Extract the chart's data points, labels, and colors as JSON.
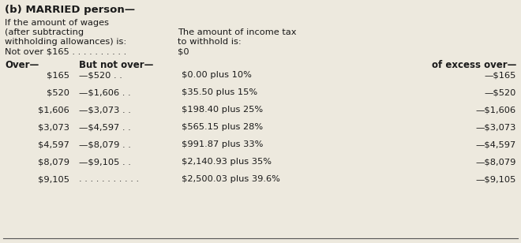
{
  "bg_color": "#ede9de",
  "title": "(b) MARRIED person—",
  "header_left1": "If the amount of wages",
  "header_left2": "(after subtracting",
  "header_left3": "withholding allowances) is:",
  "header_right1": "The amount of income tax",
  "header_right2": "to withhold is:",
  "not_over_line1": "Not over $165 . . . . . . . . . .",
  "not_over_line2": "$0",
  "col_headers": [
    "Over—",
    "But not over—",
    "of excess over—"
  ],
  "rows": [
    [
      "$165",
      "—$520 . .",
      "$0.00 plus 10%",
      "—$165"
    ],
    [
      "$520",
      "—$1,606 . .",
      "$35.50 plus 15%",
      "—$520"
    ],
    [
      "$1,606",
      "—$3,073 . .",
      "$198.40 plus 25%",
      "—$1,606"
    ],
    [
      "$3,073",
      "—$4,597 . .",
      "$565.15 plus 28%",
      "—$3,073"
    ],
    [
      "$4,597",
      "—$8,079 . .",
      "$991.87 plus 33%",
      "—$4,597"
    ],
    [
      "$8,079",
      "—$9,105 . .",
      "$2,140.93 plus 35%",
      "—$8,079"
    ],
    [
      "$9,105",
      ". . . . . . . . . . .",
      "$2,500.03 plus 39.6%",
      "—$9,105"
    ]
  ],
  "font_size_title": 9.5,
  "font_size_body": 8.2,
  "font_size_colhdr": 8.5,
  "text_color": "#1a1a1a",
  "bottom_line_color": "#555555"
}
